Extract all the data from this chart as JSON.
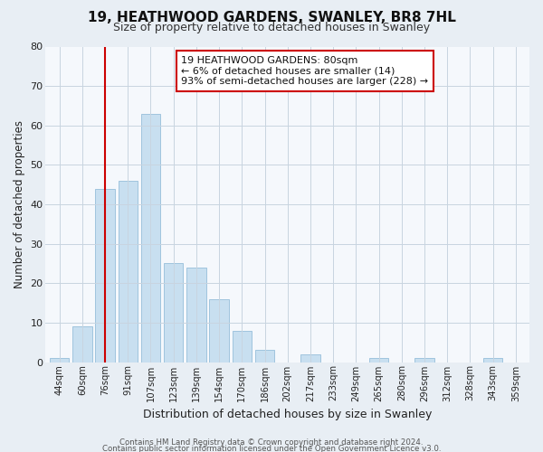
{
  "title": "19, HEATHWOOD GARDENS, SWANLEY, BR8 7HL",
  "subtitle": "Size of property relative to detached houses in Swanley",
  "xlabel": "Distribution of detached houses by size in Swanley",
  "ylabel": "Number of detached properties",
  "bar_labels": [
    "44sqm",
    "60sqm",
    "76sqm",
    "91sqm",
    "107sqm",
    "123sqm",
    "139sqm",
    "154sqm",
    "170sqm",
    "186sqm",
    "202sqm",
    "217sqm",
    "233sqm",
    "249sqm",
    "265sqm",
    "280sqm",
    "296sqm",
    "312sqm",
    "328sqm",
    "343sqm",
    "359sqm"
  ],
  "bar_values": [
    1,
    9,
    44,
    46,
    63,
    25,
    24,
    16,
    8,
    3,
    0,
    2,
    0,
    0,
    1,
    0,
    1,
    0,
    0,
    1,
    0
  ],
  "bar_color": "#c8dff0",
  "bar_edge_color": "#a0c4de",
  "ylim": [
    0,
    80
  ],
  "yticks": [
    0,
    10,
    20,
    30,
    40,
    50,
    60,
    70,
    80
  ],
  "vline_x_index": 2,
  "vline_color": "#cc0000",
  "annotation_title": "19 HEATHWOOD GARDENS: 80sqm",
  "annotation_line1": "← 6% of detached houses are smaller (14)",
  "annotation_line2": "93% of semi-detached houses are larger (228) →",
  "annotation_box_facecolor": "#ffffff",
  "annotation_box_edgecolor": "#cc0000",
  "footer1": "Contains HM Land Registry data © Crown copyright and database right 2024.",
  "footer2": "Contains public sector information licensed under the Open Government Licence v3.0.",
  "background_color": "#e8eef4",
  "plot_bg_color": "#f5f8fc",
  "grid_color": "#c8d4e0"
}
